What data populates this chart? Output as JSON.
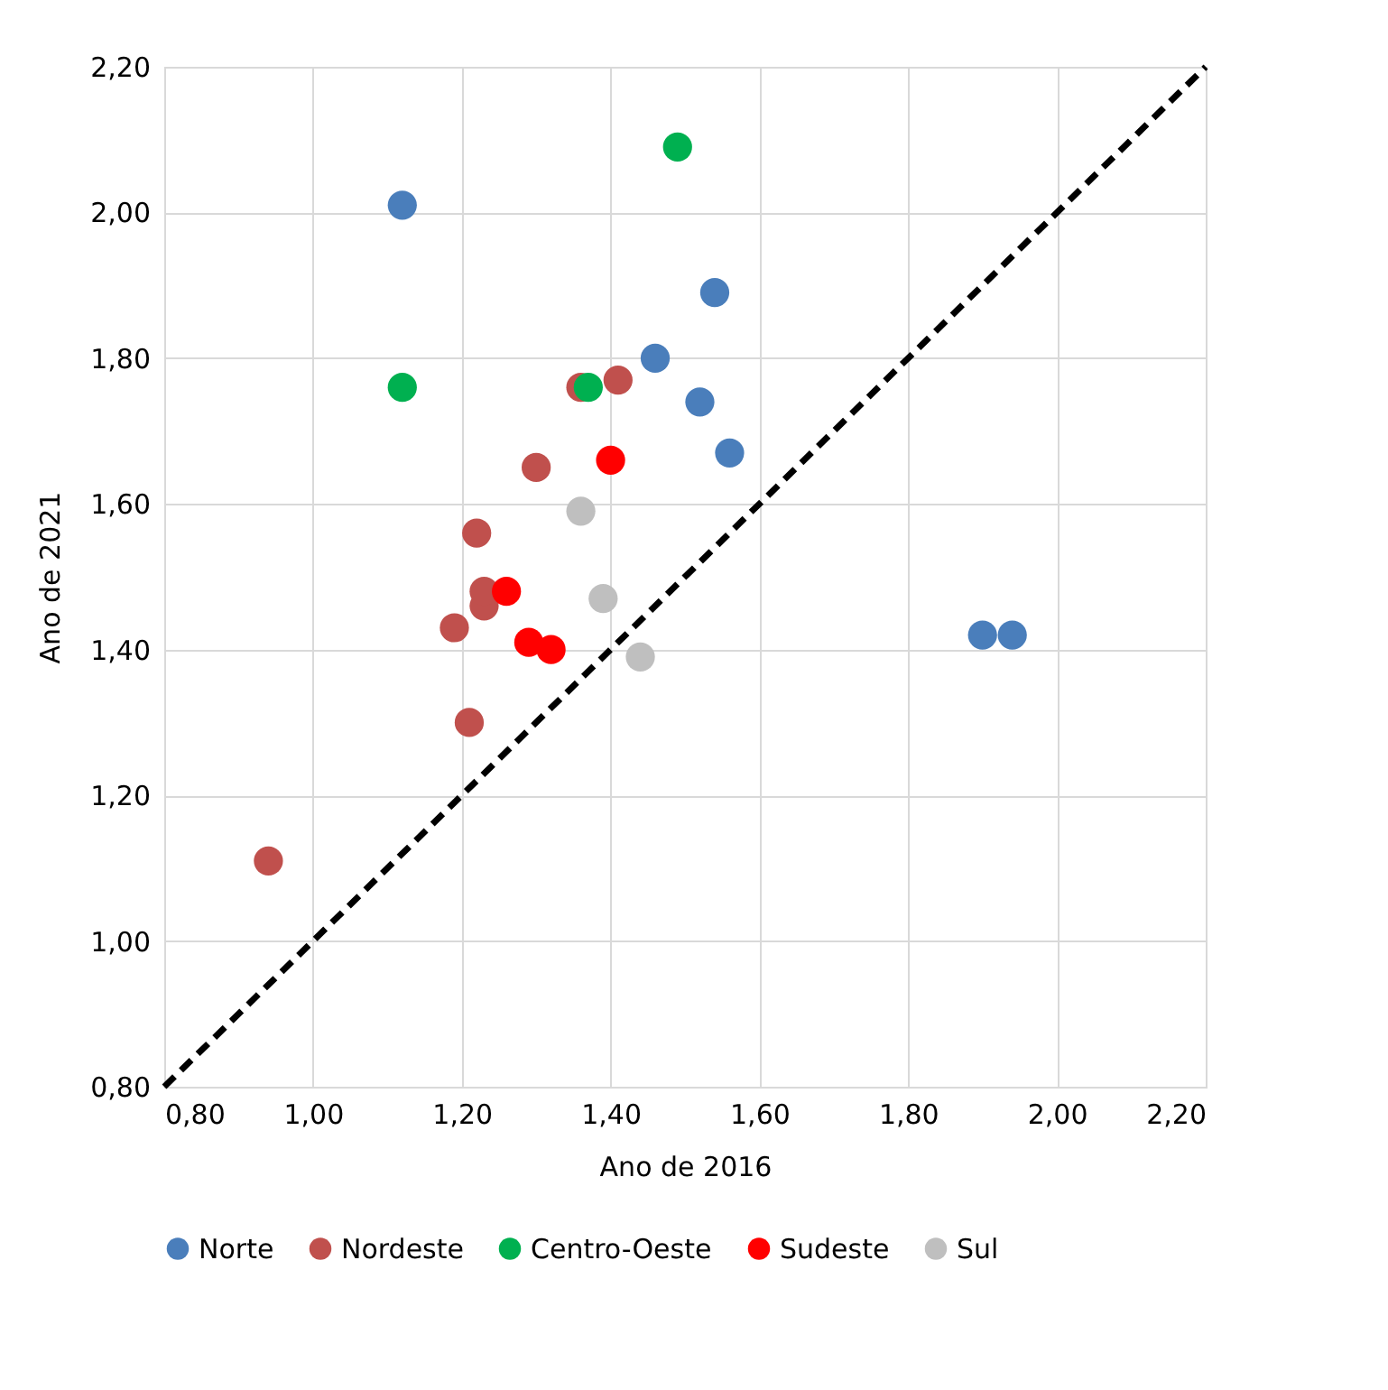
{
  "chart_data": {
    "type": "scatter",
    "xlabel": "Ano de 2016",
    "ylabel": "Ano de 2021",
    "xlim": [
      0.8,
      2.2
    ],
    "ylim": [
      0.8,
      2.2
    ],
    "xticks": [
      {
        "value": 0.8,
        "label": "0,80"
      },
      {
        "value": 1.0,
        "label": "1,00"
      },
      {
        "value": 1.2,
        "label": "1,20"
      },
      {
        "value": 1.4,
        "label": "1,40"
      },
      {
        "value": 1.6,
        "label": "1,60"
      },
      {
        "value": 1.8,
        "label": "1,80"
      },
      {
        "value": 2.0,
        "label": "2,00"
      },
      {
        "value": 2.2,
        "label": "2,20"
      }
    ],
    "yticks": [
      {
        "value": 0.8,
        "label": "0,80"
      },
      {
        "value": 1.0,
        "label": "1,00"
      },
      {
        "value": 1.2,
        "label": "1,20"
      },
      {
        "value": 1.4,
        "label": "1,40"
      },
      {
        "value": 1.6,
        "label": "1,60"
      },
      {
        "value": 1.8,
        "label": "1,80"
      },
      {
        "value": 2.0,
        "label": "2,00"
      },
      {
        "value": 2.2,
        "label": "2,20"
      }
    ],
    "grid": true,
    "legend": "bottom",
    "marker": "circle",
    "series": [
      {
        "name": "Norte",
        "color": "#4a7ebb",
        "x": [
          1.12,
          1.54,
          1.46,
          1.52,
          1.56,
          1.9,
          1.94
        ],
        "values": [
          2.01,
          1.89,
          1.8,
          1.74,
          1.67,
          1.42,
          1.42
        ]
      },
      {
        "name": "Nordeste",
        "color": "#c0504d",
        "x": [
          0.94,
          1.21,
          1.19,
          1.23,
          1.23,
          1.22,
          1.3,
          1.36,
          1.41
        ],
        "values": [
          1.11,
          1.3,
          1.43,
          1.46,
          1.48,
          1.56,
          1.65,
          1.76,
          1.77
        ]
      },
      {
        "name": "Centro-Oeste",
        "color": "#00b050",
        "x": [
          1.49,
          1.12,
          1.37
        ],
        "values": [
          2.09,
          1.76,
          1.76
        ]
      },
      {
        "name": "Sudeste",
        "color": "#ff0000",
        "x": [
          1.4,
          1.26,
          1.29,
          1.32
        ],
        "values": [
          1.66,
          1.48,
          1.41,
          1.4
        ]
      },
      {
        "name": "Sul",
        "color": "#bfbfbf",
        "x": [
          1.36,
          1.39,
          1.44
        ],
        "values": [
          1.59,
          1.47,
          1.39
        ]
      },
      {
        "type": "line",
        "color": "#000000",
        "line_style": "dashed",
        "marker": "none",
        "x": [
          0.8,
          2.2
        ],
        "values": [
          0.8,
          2.2
        ]
      }
    ]
  }
}
